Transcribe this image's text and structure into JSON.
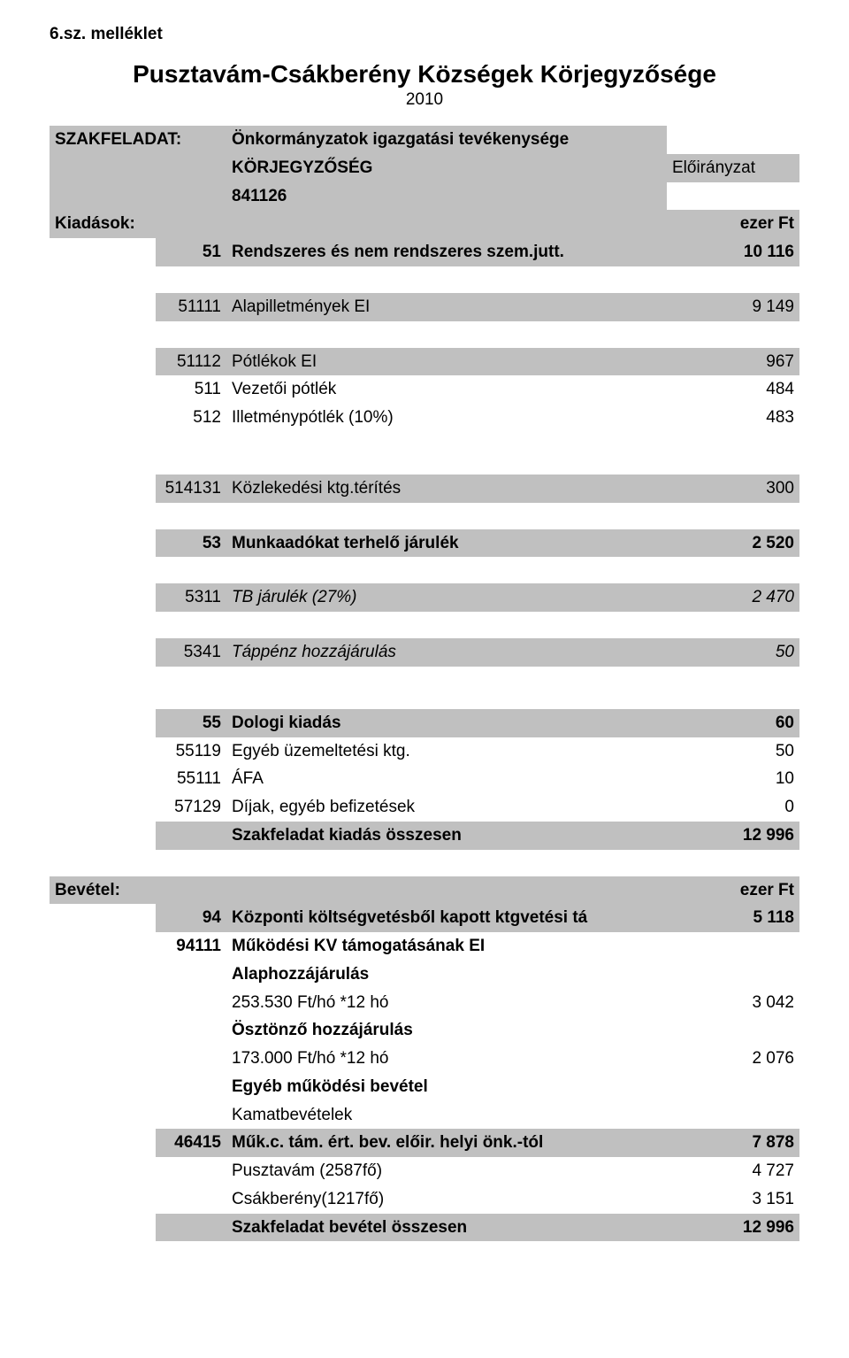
{
  "colors": {
    "background": "#ffffff",
    "section_bg": "#c0c0c0",
    "text": "#000000"
  },
  "typography": {
    "title_fontsize_pt": 21,
    "body_fontsize_pt": 14,
    "font_family": "Arial"
  },
  "header": {
    "attachment": "6.sz. melléklet",
    "title": "Pusztavám-Csákberény Községek Körjegyzősége",
    "year": "2010"
  },
  "szakfeladat": {
    "label": "SZAKFELADAT:",
    "name": "Önkormányzatok igazgatási tevékenysége",
    "sub": "KÖRJEGYZŐSÉG",
    "code": "841126",
    "allocation_label": "Előirányzat"
  },
  "kiadasok": {
    "label": "Kiadások:",
    "unit": "ezer Ft",
    "line51": {
      "code": "51",
      "label": "Rendszeres és nem rendszeres szem.jutt.",
      "value": "10 116"
    },
    "line51111": {
      "code": "51111",
      "label": "Alapilletmények EI",
      "value": "9 149"
    },
    "line51112": {
      "code": "51112",
      "label": "Pótlékok EI",
      "value": "967"
    },
    "line511": {
      "code": "511",
      "label": "Vezetői pótlék",
      "value": "484"
    },
    "line512": {
      "code": "512",
      "label": "Illetménypótlék (10%)",
      "value": "483"
    },
    "line514131": {
      "code": "514131",
      "label": "Közlekedési ktg.térítés",
      "value": "300"
    },
    "line53": {
      "code": "53",
      "label": "Munkaadókat terhelő járulék",
      "value": "2 520"
    },
    "line5311": {
      "code": "5311",
      "label": "TB járulék (27%)",
      "value": "2 470"
    },
    "line5341": {
      "code": "5341",
      "label": "Táppénz hozzájárulás",
      "value": "50"
    },
    "line55": {
      "code": "55",
      "label": "Dologi kiadás",
      "value": "60"
    },
    "line55119": {
      "code": "55119",
      "label": "Egyéb üzemeltetési ktg.",
      "value": "50"
    },
    "line55111": {
      "code": "55111",
      "label": "ÁFA",
      "value": "10"
    },
    "line57129": {
      "code": "57129",
      "label": "Díjak, egyéb befizetések",
      "value": "0"
    },
    "total": {
      "label": "Szakfeladat kiadás összesen",
      "value": "12 996"
    }
  },
  "bevetel": {
    "label": "Bevétel:",
    "unit": "ezer Ft",
    "line94": {
      "code": "94",
      "label": "Központi költségvetésből kapott ktgvetési tá",
      "value": "5 118"
    },
    "line94111": {
      "code": "94111",
      "label": "Működési KV támogatásának EI"
    },
    "alap": {
      "label": "Alaphozzájárulás"
    },
    "alap_detail": {
      "label": "253.530 Ft/hó *12 hó",
      "value": "3 042"
    },
    "osztonzo": {
      "label": "Ösztönző hozzájárulás"
    },
    "osztonzo_detail": {
      "label": "173.000 Ft/hó *12 hó",
      "value": "2 076"
    },
    "egyeb": {
      "label": "Egyéb működési bevétel"
    },
    "kamat": {
      "label": "Kamatbevételek"
    },
    "line46415": {
      "code": "46415",
      "label": "Műk.c. tám. ért. bev. előir. helyi önk.-tól",
      "value": "7 878"
    },
    "pusztavam": {
      "label": "Pusztavám (2587fő)",
      "value": "4 727"
    },
    "csakbereny": {
      "label": "Csákberény(1217fő)",
      "value": "3 151"
    },
    "total": {
      "label": "Szakfeladat bevétel összesen",
      "value": "12 996"
    }
  }
}
